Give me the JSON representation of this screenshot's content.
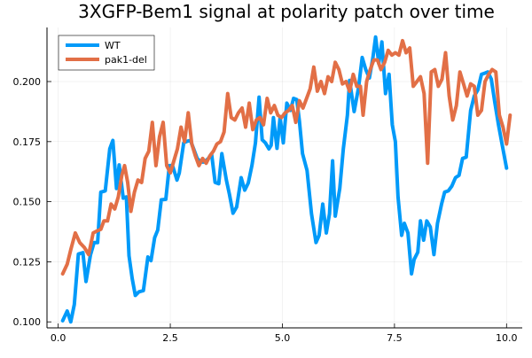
{
  "chart_data": {
    "type": "line",
    "title": "3XGFP-Bem1 signal at polarity patch over time",
    "xlabel": "",
    "ylabel": "",
    "xlim": [
      -0.25,
      10.35
    ],
    "ylim": [
      0.0975,
      0.2225
    ],
    "x_ticks": [
      0.0,
      2.5,
      5.0,
      7.5,
      10.0
    ],
    "x_tick_labels": [
      "0.0",
      "2.5",
      "5.0",
      "7.5",
      "10.0"
    ],
    "y_ticks": [
      0.1,
      0.125,
      0.15,
      0.175,
      0.2
    ],
    "y_tick_labels": [
      "0.100",
      "0.125",
      "0.150",
      "0.175",
      "0.200"
    ],
    "grid": true,
    "legend_position": "top-left",
    "series": [
      {
        "name": "WT",
        "color": "#009af9",
        "points": [
          [
            0.1,
            0.1005
          ],
          [
            0.2,
            0.1045
          ],
          [
            0.28,
            0.1
          ],
          [
            0.36,
            0.1072
          ],
          [
            0.45,
            0.1282
          ],
          [
            0.55,
            0.1288
          ],
          [
            0.62,
            0.1168
          ],
          [
            0.72,
            0.1278
          ],
          [
            0.8,
            0.133
          ],
          [
            0.88,
            0.133
          ],
          [
            0.95,
            0.154
          ],
          [
            1.05,
            0.1545
          ],
          [
            1.15,
            0.172
          ],
          [
            1.22,
            0.1755
          ],
          [
            1.3,
            0.1555
          ],
          [
            1.36,
            0.1653
          ],
          [
            1.45,
            0.1515
          ],
          [
            1.52,
            0.152
          ],
          [
            1.58,
            0.1275
          ],
          [
            1.65,
            0.118
          ],
          [
            1.72,
            0.111
          ],
          [
            1.8,
            0.1125
          ],
          [
            1.9,
            0.113
          ],
          [
            2.0,
            0.127
          ],
          [
            2.07,
            0.1255
          ],
          [
            2.15,
            0.135
          ],
          [
            2.22,
            0.1382
          ],
          [
            2.3,
            0.1508
          ],
          [
            2.4,
            0.151
          ],
          [
            2.48,
            0.165
          ],
          [
            2.55,
            0.165
          ],
          [
            2.65,
            0.159
          ],
          [
            2.7,
            0.162
          ],
          [
            2.8,
            0.1745
          ],
          [
            2.88,
            0.1752
          ],
          [
            2.95,
            0.1755
          ],
          [
            3.02,
            0.172
          ],
          [
            3.1,
            0.168
          ],
          [
            3.18,
            0.1665
          ],
          [
            3.26,
            0.1665
          ],
          [
            3.35,
            0.168
          ],
          [
            3.42,
            0.17
          ],
          [
            3.5,
            0.158
          ],
          [
            3.58,
            0.1575
          ],
          [
            3.65,
            0.17
          ],
          [
            3.75,
            0.159
          ],
          [
            3.82,
            0.153
          ],
          [
            3.9,
            0.1452
          ],
          [
            3.98,
            0.1478
          ],
          [
            4.08,
            0.16
          ],
          [
            4.16,
            0.1548
          ],
          [
            4.24,
            0.1578
          ],
          [
            4.32,
            0.165
          ],
          [
            4.4,
            0.1745
          ],
          [
            4.48,
            0.1935
          ],
          [
            4.55,
            0.1758
          ],
          [
            4.62,
            0.1745
          ],
          [
            4.7,
            0.172
          ],
          [
            4.75,
            0.1735
          ],
          [
            4.8,
            0.185
          ],
          [
            4.88,
            0.1722
          ],
          [
            4.95,
            0.185
          ],
          [
            5.02,
            0.1745
          ],
          [
            5.1,
            0.191
          ],
          [
            5.18,
            0.188
          ],
          [
            5.25,
            0.193
          ],
          [
            5.32,
            0.1925
          ],
          [
            5.38,
            0.1835
          ],
          [
            5.45,
            0.17
          ],
          [
            5.55,
            0.163
          ],
          [
            5.65,
            0.145
          ],
          [
            5.75,
            0.133
          ],
          [
            5.82,
            0.136
          ],
          [
            5.9,
            0.149
          ],
          [
            5.98,
            0.137
          ],
          [
            6.05,
            0.145
          ],
          [
            6.12,
            0.167
          ],
          [
            6.18,
            0.144
          ],
          [
            6.28,
            0.1555
          ],
          [
            6.36,
            0.172
          ],
          [
            6.45,
            0.186
          ],
          [
            6.5,
            0.2005
          ],
          [
            6.6,
            0.1875
          ],
          [
            6.7,
            0.1975
          ],
          [
            6.78,
            0.21
          ],
          [
            6.86,
            0.205
          ],
          [
            6.94,
            0.2015
          ],
          [
            7.02,
            0.21
          ],
          [
            7.08,
            0.2185
          ],
          [
            7.15,
            0.2075
          ],
          [
            7.22,
            0.2165
          ],
          [
            7.3,
            0.195
          ],
          [
            7.38,
            0.203
          ],
          [
            7.45,
            0.182
          ],
          [
            7.52,
            0.175
          ],
          [
            7.58,
            0.152
          ],
          [
            7.66,
            0.136
          ],
          [
            7.72,
            0.141
          ],
          [
            7.8,
            0.137
          ],
          [
            7.88,
            0.12
          ],
          [
            7.94,
            0.126
          ],
          [
            8.02,
            0.129
          ],
          [
            8.08,
            0.142
          ],
          [
            8.15,
            0.134
          ],
          [
            8.22,
            0.142
          ],
          [
            8.3,
            0.1395
          ],
          [
            8.38,
            0.128
          ],
          [
            8.46,
            0.141
          ],
          [
            8.55,
            0.149
          ],
          [
            8.62,
            0.154
          ],
          [
            8.7,
            0.1545
          ],
          [
            8.78,
            0.1565
          ],
          [
            8.86,
            0.16
          ],
          [
            8.94,
            0.161
          ],
          [
            9.02,
            0.168
          ],
          [
            9.1,
            0.1685
          ],
          [
            9.2,
            0.188
          ],
          [
            9.28,
            0.194
          ],
          [
            9.36,
            0.1965
          ],
          [
            9.44,
            0.203
          ],
          [
            9.52,
            0.2035
          ],
          [
            9.58,
            0.204
          ],
          [
            9.66,
            0.201
          ],
          [
            9.74,
            0.191
          ],
          [
            9.82,
            0.182
          ],
          [
            9.9,
            0.174
          ],
          [
            10.0,
            0.164
          ]
        ]
      },
      {
        "name": "pak1-del",
        "color": "#e26f46",
        "points": [
          [
            0.1,
            0.12
          ],
          [
            0.2,
            0.124
          ],
          [
            0.28,
            0.13
          ],
          [
            0.38,
            0.137
          ],
          [
            0.48,
            0.133
          ],
          [
            0.58,
            0.131
          ],
          [
            0.68,
            0.128
          ],
          [
            0.78,
            0.137
          ],
          [
            0.88,
            0.138
          ],
          [
            0.95,
            0.1385
          ],
          [
            1.02,
            0.142
          ],
          [
            1.1,
            0.142
          ],
          [
            1.18,
            0.149
          ],
          [
            1.26,
            0.147
          ],
          [
            1.34,
            0.152
          ],
          [
            1.42,
            0.161
          ],
          [
            1.48,
            0.165
          ],
          [
            1.55,
            0.158
          ],
          [
            1.62,
            0.146
          ],
          [
            1.7,
            0.154
          ],
          [
            1.78,
            0.159
          ],
          [
            1.86,
            0.158
          ],
          [
            1.94,
            0.168
          ],
          [
            2.02,
            0.171
          ],
          [
            2.1,
            0.183
          ],
          [
            2.18,
            0.165
          ],
          [
            2.26,
            0.177
          ],
          [
            2.34,
            0.183
          ],
          [
            2.42,
            0.165
          ],
          [
            2.5,
            0.162
          ],
          [
            2.58,
            0.167
          ],
          [
            2.66,
            0.172
          ],
          [
            2.74,
            0.181
          ],
          [
            2.82,
            0.175
          ],
          [
            2.9,
            0.187
          ],
          [
            2.98,
            0.174
          ],
          [
            3.06,
            0.169
          ],
          [
            3.14,
            0.165
          ],
          [
            3.22,
            0.168
          ],
          [
            3.3,
            0.166
          ],
          [
            3.38,
            0.169
          ],
          [
            3.46,
            0.171
          ],
          [
            3.54,
            0.174
          ],
          [
            3.62,
            0.175
          ],
          [
            3.7,
            0.179
          ],
          [
            3.78,
            0.195
          ],
          [
            3.86,
            0.185
          ],
          [
            3.94,
            0.184
          ],
          [
            4.02,
            0.187
          ],
          [
            4.1,
            0.189
          ],
          [
            4.18,
            0.181
          ],
          [
            4.26,
            0.191
          ],
          [
            4.34,
            0.18
          ],
          [
            4.42,
            0.184
          ],
          [
            4.5,
            0.185
          ],
          [
            4.58,
            0.182
          ],
          [
            4.66,
            0.193
          ],
          [
            4.74,
            0.187
          ],
          [
            4.82,
            0.19
          ],
          [
            4.9,
            0.186
          ],
          [
            4.98,
            0.185
          ],
          [
            5.06,
            0.187
          ],
          [
            5.14,
            0.188
          ],
          [
            5.22,
            0.19
          ],
          [
            5.3,
            0.183
          ],
          [
            5.38,
            0.192
          ],
          [
            5.46,
            0.189
          ],
          [
            5.54,
            0.193
          ],
          [
            5.62,
            0.197
          ],
          [
            5.7,
            0.206
          ],
          [
            5.78,
            0.196
          ],
          [
            5.86,
            0.2
          ],
          [
            5.94,
            0.195
          ],
          [
            6.02,
            0.202
          ],
          [
            6.1,
            0.2
          ],
          [
            6.18,
            0.208
          ],
          [
            6.26,
            0.205
          ],
          [
            6.34,
            0.199
          ],
          [
            6.42,
            0.2
          ],
          [
            6.5,
            0.196
          ],
          [
            6.58,
            0.203
          ],
          [
            6.66,
            0.198
          ],
          [
            6.74,
            0.198
          ],
          [
            6.8,
            0.186
          ],
          [
            6.88,
            0.2
          ],
          [
            6.96,
            0.205
          ],
          [
            7.04,
            0.209
          ],
          [
            7.12,
            0.209
          ],
          [
            7.2,
            0.205
          ],
          [
            7.28,
            0.208
          ],
          [
            7.36,
            0.213
          ],
          [
            7.44,
            0.211
          ],
          [
            7.52,
            0.212
          ],
          [
            7.6,
            0.211
          ],
          [
            7.68,
            0.217
          ],
          [
            7.76,
            0.212
          ],
          [
            7.84,
            0.214
          ],
          [
            7.92,
            0.198
          ],
          [
            8.0,
            0.2
          ],
          [
            8.08,
            0.202
          ],
          [
            8.16,
            0.195
          ],
          [
            8.24,
            0.166
          ],
          [
            8.32,
            0.204
          ],
          [
            8.4,
            0.205
          ],
          [
            8.48,
            0.198
          ],
          [
            8.56,
            0.201
          ],
          [
            8.64,
            0.212
          ],
          [
            8.72,
            0.194
          ],
          [
            8.8,
            0.184
          ],
          [
            8.88,
            0.19
          ],
          [
            8.96,
            0.204
          ],
          [
            9.04,
            0.199
          ],
          [
            9.12,
            0.194
          ],
          [
            9.2,
            0.199
          ],
          [
            9.28,
            0.198
          ],
          [
            9.36,
            0.186
          ],
          [
            9.44,
            0.188
          ],
          [
            9.52,
            0.2
          ],
          [
            9.6,
            0.203
          ],
          [
            9.68,
            0.205
          ],
          [
            9.76,
            0.204
          ],
          [
            9.84,
            0.186
          ],
          [
            9.92,
            0.181
          ],
          [
            10.0,
            0.174
          ],
          [
            10.08,
            0.186
          ]
        ]
      }
    ]
  }
}
